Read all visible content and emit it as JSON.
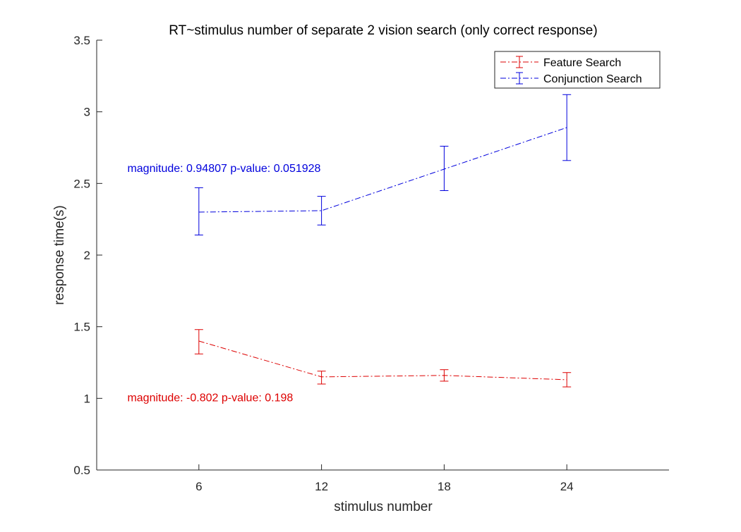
{
  "colors": {
    "feature": "#dd0000",
    "conjunction": "#0000dd",
    "axis": "#262626",
    "background": "#ffffff"
  },
  "chart_data": {
    "type": "line",
    "title": "RT~stimulus number of separate 2 vision search (only correct response)",
    "xlabel": "stimulus number",
    "ylabel": "response time(s)",
    "xlim": [
      1,
      29
    ],
    "ylim": [
      0.5,
      3.5
    ],
    "x_ticks": [
      6,
      12,
      18,
      24
    ],
    "x_tick_labels": [
      "6",
      "12",
      "18",
      "24"
    ],
    "y_ticks": [
      0.5,
      1,
      1.5,
      2,
      2.5,
      3,
      3.5
    ],
    "y_tick_labels": [
      "0.5",
      "1",
      "1.5",
      "2",
      "2.5",
      "3",
      "3.5"
    ],
    "grid": false,
    "legend_position": "top-right",
    "line_style": "dash-dot with error bars",
    "x": [
      6,
      12,
      18,
      24
    ],
    "series": [
      {
        "name": "Feature Search",
        "color": "#dd0000",
        "values": [
          1.4,
          1.15,
          1.16,
          1.13
        ],
        "err_low": [
          1.31,
          1.1,
          1.12,
          1.08
        ],
        "err_high": [
          1.48,
          1.19,
          1.2,
          1.18
        ]
      },
      {
        "name": "Conjunction Search",
        "color": "#0000dd",
        "values": [
          2.3,
          2.31,
          2.6,
          2.89
        ],
        "err_low": [
          2.14,
          2.21,
          2.45,
          2.66
        ],
        "err_high": [
          2.47,
          2.41,
          2.76,
          3.12
        ]
      }
    ],
    "annotations": [
      {
        "text": "magnitude: 0.94807 p-value: 0.051928",
        "x": 2.5,
        "y": 2.58,
        "color": "#0000dd"
      },
      {
        "text": "magnitude: -0.802 p-value: 0.198",
        "x": 2.5,
        "y": 0.98,
        "color": "#dd0000"
      }
    ]
  }
}
